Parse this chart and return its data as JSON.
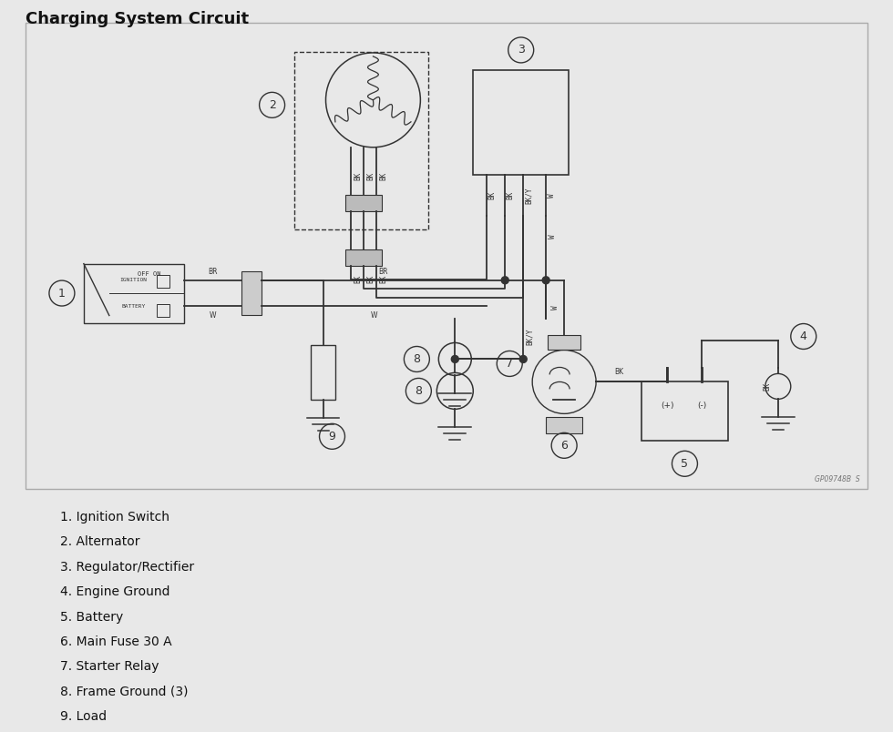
{
  "title": "Charging System Circuit",
  "bg_color": "#e8e8e8",
  "diagram_bg": "#f0f0f0",
  "line_color": "#333333",
  "legend_items": [
    "1. Ignition Switch",
    "2. Alternator",
    "3. Regulator/Rectifier",
    "4. Engine Ground",
    "5. Battery",
    "6. Main Fuse 30 A",
    "7. Starter Relay",
    "8. Frame Ground (3)",
    "9. Load"
  ],
  "title_fontsize": 13,
  "label_fontsize": 9,
  "wire_label_fontsize": 5.5,
  "legend_fontsize": 10,
  "watermark": "GP09748B  S",
  "border_color": "#aaaaaa"
}
